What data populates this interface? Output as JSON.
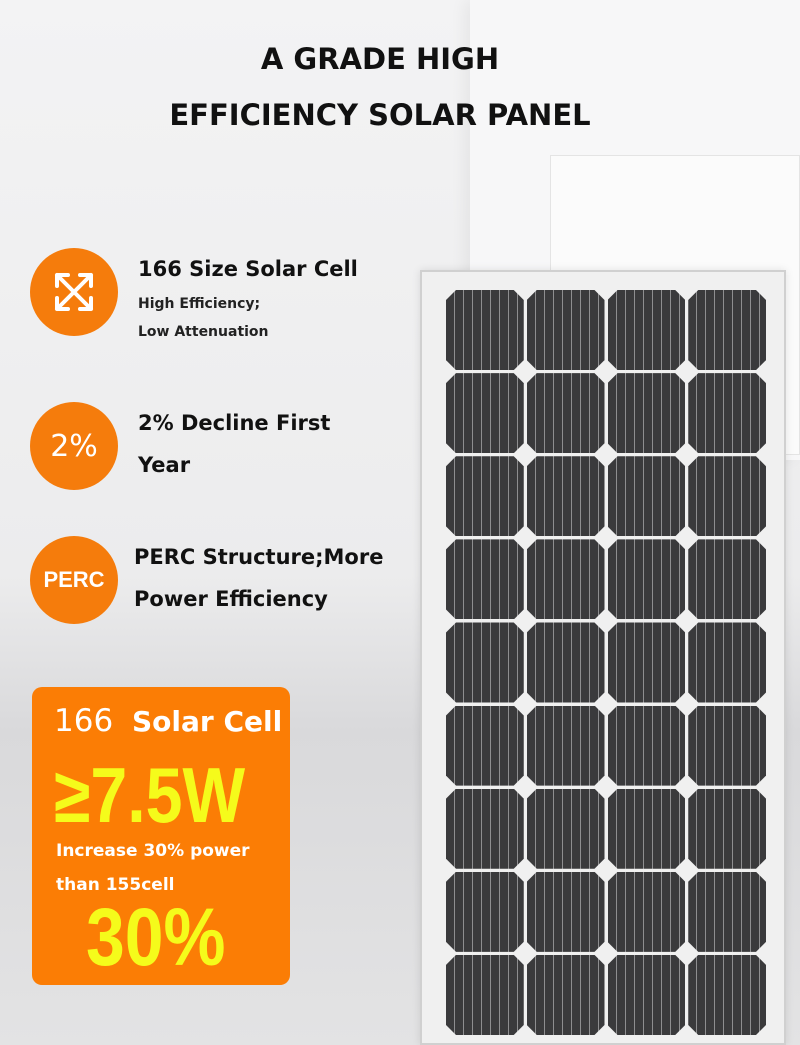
{
  "header": {
    "line1": "A GRADE HIGH",
    "line2": "EFFICIENCY SOLAR PANEL"
  },
  "features": [
    {
      "icon": "expand-arrows-icon",
      "title": "166 Size Solar Cell",
      "sub1": "High Efficiency;",
      "sub2": "Low Attenuation"
    },
    {
      "icon_text": "2%",
      "title1": "2% Decline First",
      "title2": "Year"
    },
    {
      "icon_text": "PERC",
      "title1": "PERC Structure;More",
      "title2": "Power Efficiency"
    }
  ],
  "promo": {
    "num": "166",
    "label": "Solar Cell",
    "power": "≥7.5W",
    "line1": "Increase 30% power",
    "line2": "than 155cell",
    "percent": "30%"
  },
  "colors": {
    "accent": "#f57c0c",
    "highlight": "#f5fb1b"
  },
  "panel": {
    "columns": 4,
    "rows": 9
  }
}
